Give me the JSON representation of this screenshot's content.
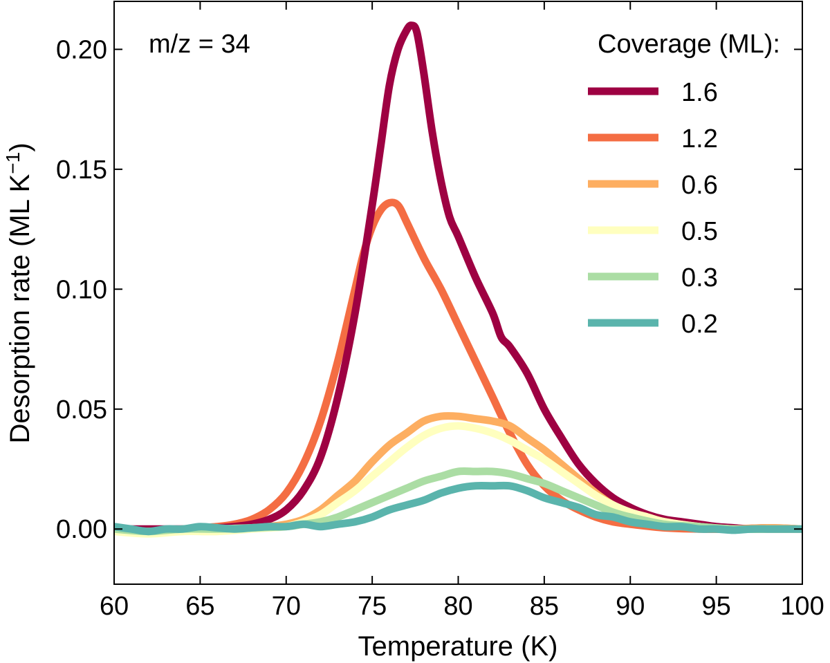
{
  "chart_data": {
    "type": "line",
    "title": "",
    "xlabel": "Temperature (K)",
    "ylabel_main": "Desorption rate (ML K",
    "ylabel_sup": "−1",
    "ylabel_close": ")",
    "xlim": [
      60,
      100
    ],
    "ylim": [
      -0.023,
      0.22
    ],
    "xticks": [
      60,
      65,
      70,
      75,
      80,
      85,
      90,
      95,
      100
    ],
    "xtick_labels": [
      "60",
      "65",
      "70",
      "75",
      "80",
      "85",
      "90",
      "95",
      "100"
    ],
    "yticks": [
      0.0,
      0.05,
      0.1,
      0.15,
      0.2
    ],
    "ytick_labels": [
      "0.00",
      "0.05",
      "0.10",
      "0.15",
      "0.20"
    ],
    "grid": false,
    "annotation": "m/z = 34",
    "legend_title": "Coverage (ML):",
    "legend_position": "top-right",
    "series": [
      {
        "name": "1.6",
        "color": "#9e0142",
        "x": [
          60,
          62,
          64,
          66,
          67,
          68,
          69,
          70,
          71,
          72,
          73,
          74,
          75,
          75.5,
          76,
          76.5,
          77,
          77.3,
          77.6,
          78,
          78.5,
          79,
          79.5,
          80,
          81,
          82,
          82.5,
          83,
          84,
          85,
          86,
          87,
          88,
          89,
          90,
          91,
          92,
          93,
          94,
          95,
          96,
          97,
          98,
          99,
          100
        ],
        "values": [
          0.0,
          0.0,
          0.0,
          0.0005,
          0.001,
          0.002,
          0.004,
          0.008,
          0.016,
          0.03,
          0.055,
          0.09,
          0.135,
          0.16,
          0.185,
          0.2,
          0.208,
          0.21,
          0.207,
          0.19,
          0.165,
          0.145,
          0.13,
          0.122,
          0.105,
          0.09,
          0.08,
          0.076,
          0.065,
          0.05,
          0.038,
          0.027,
          0.019,
          0.013,
          0.009,
          0.006,
          0.004,
          0.003,
          0.002,
          0.001,
          0.0005,
          0.0,
          0.0,
          0.0,
          0.0
        ]
      },
      {
        "name": "1.2",
        "color": "#f46d43",
        "x": [
          60,
          62,
          63,
          64,
          66,
          67,
          68,
          69,
          70,
          71,
          72,
          73,
          74,
          74.5,
          75,
          75.5,
          76,
          76.5,
          77,
          78,
          79,
          80,
          81,
          82,
          83,
          84,
          85,
          86,
          87,
          88,
          89,
          90,
          92,
          94,
          96,
          98,
          100
        ],
        "values": [
          0.0,
          -0.001,
          -0.001,
          0.0,
          0.001,
          0.002,
          0.004,
          0.008,
          0.015,
          0.027,
          0.045,
          0.07,
          0.1,
          0.115,
          0.126,
          0.133,
          0.136,
          0.135,
          0.128,
          0.113,
          0.1,
          0.085,
          0.07,
          0.055,
          0.04,
          0.027,
          0.018,
          0.012,
          0.008,
          0.005,
          0.003,
          0.002,
          0.0005,
          0.0,
          0.0,
          0.0005,
          0.0
        ]
      },
      {
        "name": "0.6",
        "color": "#fdae61",
        "x": [
          60,
          62,
          64,
          66,
          68,
          69,
          70,
          71,
          72,
          73,
          74,
          75,
          76,
          77,
          78,
          79,
          80,
          81,
          82,
          83,
          84,
          85,
          86,
          87,
          88,
          89,
          90,
          91,
          92,
          94,
          96,
          98,
          100
        ],
        "values": [
          0.0,
          -0.001,
          -0.0005,
          0.0,
          0.0005,
          0.001,
          0.002,
          0.004,
          0.008,
          0.014,
          0.02,
          0.028,
          0.035,
          0.04,
          0.045,
          0.047,
          0.047,
          0.046,
          0.045,
          0.043,
          0.038,
          0.033,
          0.027,
          0.021,
          0.015,
          0.01,
          0.007,
          0.005,
          0.003,
          0.001,
          0.0,
          0.0005,
          0.0
        ]
      },
      {
        "name": "0.5",
        "color": "#ffffbf",
        "x": [
          60,
          62,
          64,
          66,
          68,
          69,
          70,
          71,
          72,
          73,
          74,
          75,
          76,
          77,
          78,
          79,
          80,
          81,
          82,
          83,
          84,
          85,
          86,
          87,
          88,
          89,
          90,
          91,
          92,
          94,
          96,
          98,
          100
        ],
        "values": [
          -0.001,
          -0.002,
          -0.001,
          -0.001,
          0.0,
          0.0005,
          0.001,
          0.003,
          0.006,
          0.011,
          0.016,
          0.022,
          0.028,
          0.034,
          0.039,
          0.042,
          0.043,
          0.042,
          0.04,
          0.037,
          0.033,
          0.029,
          0.024,
          0.019,
          0.014,
          0.01,
          0.007,
          0.005,
          0.003,
          0.001,
          0.0,
          0.0,
          0.0
        ]
      },
      {
        "name": "0.3",
        "color": "#abdda4",
        "x": [
          60,
          62,
          64,
          66,
          68,
          70,
          71,
          72,
          73,
          74,
          75,
          76,
          77,
          78,
          79,
          80,
          81,
          82,
          83,
          84,
          85,
          86,
          87,
          88,
          89,
          90,
          92,
          94,
          96,
          98,
          100
        ],
        "values": [
          0.0,
          -0.001,
          0.0,
          0.0,
          0.0005,
          0.001,
          0.002,
          0.003,
          0.005,
          0.008,
          0.011,
          0.014,
          0.017,
          0.02,
          0.022,
          0.024,
          0.024,
          0.024,
          0.023,
          0.021,
          0.019,
          0.016,
          0.013,
          0.01,
          0.007,
          0.005,
          0.002,
          0.001,
          0.0,
          0.0,
          0.0
        ]
      },
      {
        "name": "0.2",
        "color": "#5ab4ac",
        "x": [
          60,
          61,
          62,
          63,
          64,
          65,
          66,
          67,
          68,
          69,
          70,
          71,
          72,
          73,
          74,
          75,
          76,
          77,
          78,
          79,
          80,
          81,
          82,
          83,
          84,
          85,
          86,
          87,
          88,
          89,
          90,
          91,
          92,
          93,
          94,
          95,
          96,
          97,
          98,
          99,
          100
        ],
        "values": [
          0.001,
          0.0,
          -0.001,
          0.0,
          0.0,
          0.001,
          0.0005,
          0.0,
          0.0005,
          0.001,
          0.001,
          0.002,
          0.001,
          0.002,
          0.003,
          0.005,
          0.008,
          0.01,
          0.012,
          0.015,
          0.017,
          0.018,
          0.018,
          0.018,
          0.016,
          0.013,
          0.011,
          0.009,
          0.006,
          0.005,
          0.003,
          0.002,
          0.001,
          0.001,
          0.0,
          0.0,
          -0.0005,
          0.0,
          0.0,
          0.0,
          0.0
        ]
      }
    ]
  }
}
